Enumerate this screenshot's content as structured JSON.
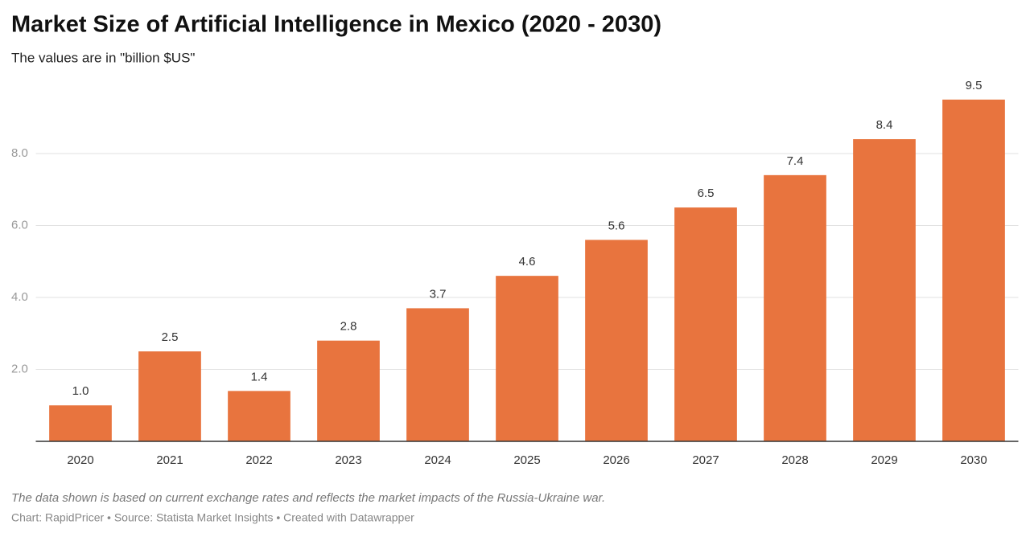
{
  "chart_data": {
    "type": "bar",
    "title": "Market Size of Artificial Intelligence in Mexico (2020 - 2030)",
    "subtitle": "The values are in \"billion $US\"",
    "note": "The data shown is based on current exchange rates and reflects the market impacts of the Russia-Ukraine war.",
    "credit": "Chart: RapidPricer • Source: Statista Market Insights • Created with Datawrapper",
    "categories": [
      "2020",
      "2021",
      "2022",
      "2023",
      "2024",
      "2025",
      "2026",
      "2027",
      "2028",
      "2029",
      "2030"
    ],
    "values": [
      1.0,
      2.5,
      1.4,
      2.8,
      3.7,
      4.6,
      5.6,
      6.5,
      7.4,
      8.4,
      9.5
    ],
    "value_labels": [
      "1.0",
      "2.5",
      "1.4",
      "2.8",
      "3.7",
      "4.6",
      "5.6",
      "6.5",
      "7.4",
      "8.4",
      "9.5"
    ],
    "color": "#e8743e",
    "ylim": [
      0,
      10
    ],
    "yticks": [
      {
        "value": 2,
        "label": "2.0"
      },
      {
        "value": 4,
        "label": "4.0"
      },
      {
        "value": 6,
        "label": "6.0"
      },
      {
        "value": 8,
        "label": "8.0"
      }
    ],
    "grid": true
  }
}
